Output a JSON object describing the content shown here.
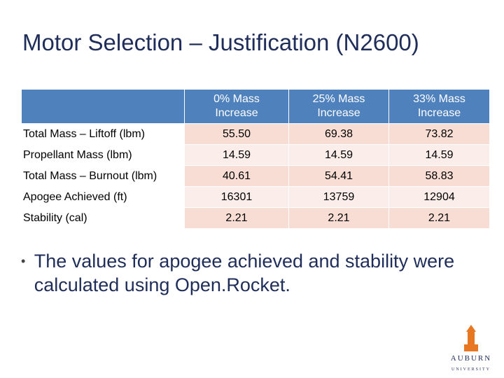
{
  "header": {
    "title": "Motor Selection – Justification (N2600)"
  },
  "table": {
    "columns": [
      "0% Mass Increase",
      "25% Mass Increase",
      "33% Mass Increase"
    ],
    "rows": [
      [
        "Total Mass – Liftoff (lbm)",
        "55.50",
        "69.38",
        "73.82"
      ],
      [
        "Propellant Mass (lbm)",
        "14.59",
        "14.59",
        "14.59"
      ],
      [
        "Total Mass – Burnout (lbm)",
        "40.61",
        "54.41",
        "58.83"
      ],
      [
        "Apogee Achieved (ft)",
        "16301",
        "13759",
        "12904"
      ],
      [
        "Stability (cal)",
        "2.21",
        "2.21",
        "2.21"
      ]
    ]
  },
  "bullets": [
    "The values for apogee achieved and stability were calculated using Open.Rocket."
  ],
  "logo": {
    "name": "AUBURN",
    "subtitle": "UNIVERSITY"
  }
}
